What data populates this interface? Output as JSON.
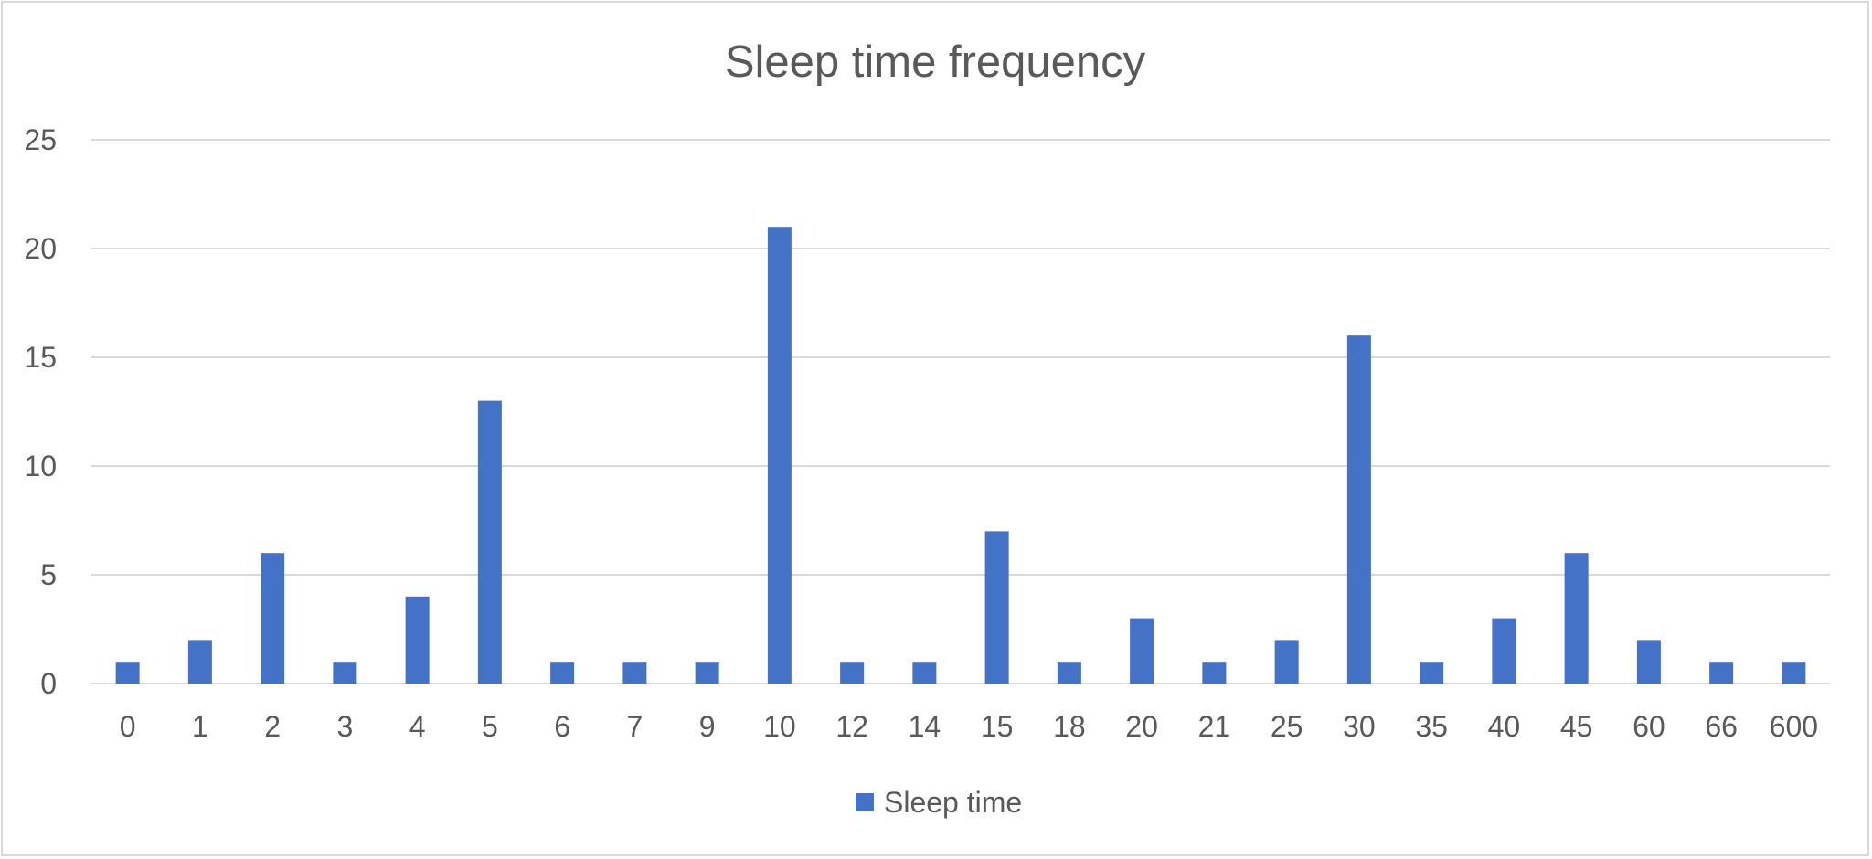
{
  "chart_data": {
    "type": "bar",
    "title": "Sleep time frequency",
    "xlabel": "",
    "ylabel": "",
    "categories": [
      "0",
      "1",
      "2",
      "3",
      "4",
      "5",
      "6",
      "7",
      "9",
      "10",
      "12",
      "14",
      "15",
      "18",
      "20",
      "21",
      "25",
      "30",
      "35",
      "40",
      "45",
      "60",
      "66",
      "600"
    ],
    "series": [
      {
        "name": "Sleep time",
        "color": "#4472c4",
        "values": [
          1,
          2,
          6,
          1,
          4,
          13,
          1,
          1,
          1,
          21,
          1,
          1,
          7,
          1,
          3,
          1,
          2,
          16,
          1,
          3,
          6,
          2,
          1,
          1
        ]
      }
    ],
    "ylim": [
      0,
      25
    ],
    "yticks": [
      "0",
      "5",
      "10",
      "15",
      "20",
      "25"
    ],
    "grid": true,
    "legend_position": "bottom"
  }
}
